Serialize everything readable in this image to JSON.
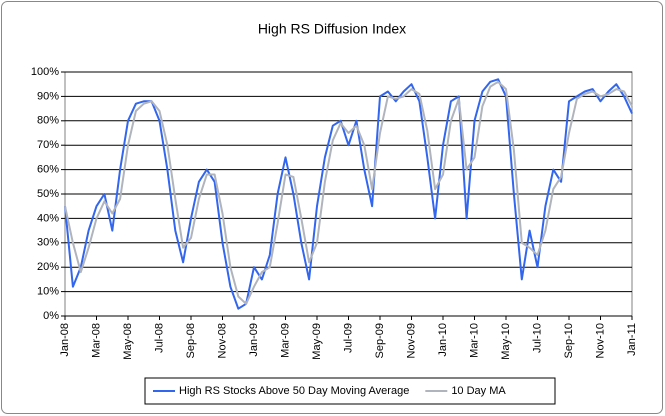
{
  "chart_data": {
    "type": "line",
    "title": "High RS Diffusion Index",
    "x": [
      0,
      0.5,
      1,
      1.5,
      2,
      2.5,
      3,
      3.5,
      4,
      4.5,
      5,
      5.5,
      6,
      6.5,
      7,
      7.5,
      8,
      8.5,
      9,
      9.5,
      10,
      10.5,
      11,
      11.5,
      12,
      12.5,
      13,
      13.5,
      14,
      14.5,
      15,
      15.5,
      16,
      16.5,
      17,
      17.5,
      18,
      18.5,
      19,
      19.5,
      20,
      20.5,
      21,
      21.5,
      22,
      22.5,
      23,
      23.5,
      24,
      24.5,
      25,
      25.5,
      26,
      26.5,
      27,
      27.5,
      28,
      28.5,
      29,
      29.5,
      30,
      30.5,
      31,
      31.5,
      32,
      32.5,
      33,
      33.5,
      34,
      34.5,
      35,
      35.5,
      36
    ],
    "series": [
      {
        "name": "High RS Stocks Above 50 Day Moving Average",
        "color": "#3366ee",
        "values": [
          45,
          12,
          20,
          35,
          45,
          50,
          35,
          60,
          80,
          87,
          88,
          88,
          80,
          60,
          35,
          22,
          40,
          55,
          60,
          55,
          30,
          12,
          3,
          5,
          20,
          15,
          25,
          50,
          65,
          50,
          30,
          15,
          45,
          65,
          78,
          80,
          70,
          80,
          60,
          45,
          90,
          92,
          88,
          92,
          95,
          88,
          65,
          40,
          70,
          88,
          90,
          40,
          80,
          92,
          96,
          97,
          90,
          50,
          15,
          35,
          20,
          45,
          60,
          55,
          88,
          90,
          92,
          93,
          88,
          92,
          95,
          90,
          83
        ]
      },
      {
        "name": "10 Day MA",
        "color": "#b0b4bc",
        "values": [
          45,
          30,
          18,
          28,
          40,
          47,
          42,
          48,
          70,
          84,
          87,
          88,
          84,
          70,
          48,
          28,
          32,
          48,
          58,
          58,
          42,
          20,
          8,
          5,
          12,
          18,
          20,
          38,
          58,
          57,
          40,
          22,
          30,
          55,
          72,
          79,
          75,
          78,
          70,
          52,
          75,
          90,
          89,
          90,
          93,
          91,
          76,
          52,
          58,
          80,
          89,
          60,
          65,
          86,
          94,
          96,
          93,
          68,
          30,
          28,
          25,
          35,
          52,
          57,
          75,
          89,
          91,
          92,
          90,
          91,
          93,
          92,
          86
        ]
      }
    ],
    "xlim": [
      0,
      36
    ],
    "xticks": [
      {
        "value": 0,
        "label": "Jan-08"
      },
      {
        "value": 2,
        "label": "Mar-08"
      },
      {
        "value": 4,
        "label": "May-08"
      },
      {
        "value": 6,
        "label": "Jul-08"
      },
      {
        "value": 8,
        "label": "Sep-08"
      },
      {
        "value": 10,
        "label": "Nov-08"
      },
      {
        "value": 12,
        "label": "Jan-09"
      },
      {
        "value": 14,
        "label": "Mar-09"
      },
      {
        "value": 16,
        "label": "May-09"
      },
      {
        "value": 18,
        "label": "Jul-09"
      },
      {
        "value": 20,
        "label": "Sep-09"
      },
      {
        "value": 22,
        "label": "Nov-09"
      },
      {
        "value": 24,
        "label": "Jan-10"
      },
      {
        "value": 26,
        "label": "Mar-10"
      },
      {
        "value": 28,
        "label": "May-10"
      },
      {
        "value": 30,
        "label": "Jul-10"
      },
      {
        "value": 32,
        "label": "Sep-10"
      },
      {
        "value": 34,
        "label": "Nov-10"
      },
      {
        "value": 36,
        "label": "Jan-11"
      }
    ],
    "ylim": [
      0,
      100
    ],
    "yticks": [
      {
        "value": 0,
        "label": "0%"
      },
      {
        "value": 10,
        "label": "10%"
      },
      {
        "value": 20,
        "label": "20%"
      },
      {
        "value": 30,
        "label": "30%"
      },
      {
        "value": 40,
        "label": "40%"
      },
      {
        "value": 50,
        "label": "50%"
      },
      {
        "value": 60,
        "label": "60%"
      },
      {
        "value": 70,
        "label": "70%"
      },
      {
        "value": 80,
        "label": "80%"
      },
      {
        "value": 90,
        "label": "90%"
      },
      {
        "value": 100,
        "label": "100%"
      }
    ],
    "grid": true,
    "legend": "bottom"
  }
}
